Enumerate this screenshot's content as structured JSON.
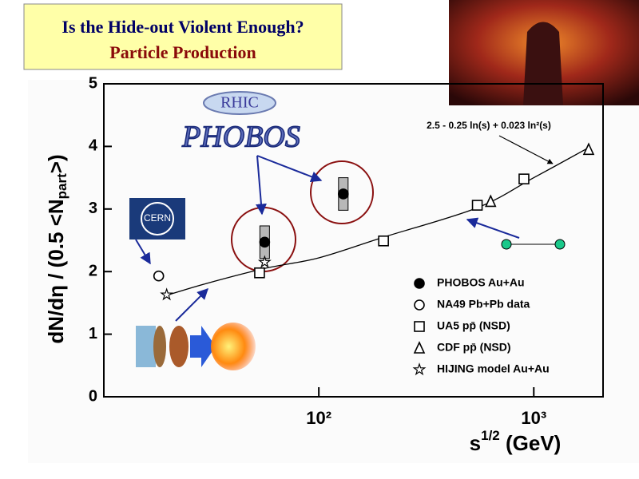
{
  "header": {
    "title": "Is the Hide-out Violent Enough?",
    "subtitle": "Particle Production"
  },
  "logos": {
    "rhic": "RHIC",
    "phobos": "PHOBOS",
    "cern": "CERN"
  },
  "chart_data": {
    "type": "scatter",
    "xlabel": [
      "s",
      "1/2",
      " (GeV)"
    ],
    "ylabel": [
      "dN/dη / (0.5 <N",
      "part",
      ">)"
    ],
    "xscale": "log",
    "xlim": [
      10,
      2100
    ],
    "ylim": [
      0,
      5
    ],
    "xticks": [
      {
        "value": 100,
        "label": "10²"
      },
      {
        "value": 1000,
        "label": "10³"
      }
    ],
    "yticks": [
      0,
      1,
      2,
      3,
      4,
      5
    ],
    "annotation": "2.5 - 0.25 ln(s) + 0.023 ln²(s)",
    "fit": {
      "x": [
        20,
        30,
        56,
        100,
        200,
        546,
        1000,
        1800
      ],
      "values": [
        1.63,
        1.81,
        2.05,
        2.22,
        2.55,
        3.02,
        3.5,
        3.98
      ],
      "color": "#000000"
    },
    "series": [
      {
        "name": "PHOBOS Au+Au",
        "marker": "filled-circle",
        "color": "#000000",
        "x": [
          56,
          130
        ],
        "values": [
          2.47,
          3.24
        ],
        "errors": [
          0.26,
          0.26
        ]
      },
      {
        "name": "NA49 Pb+Pb data",
        "marker": "circle",
        "color": "#000000",
        "x": [
          18
        ],
        "values": [
          1.93
        ]
      },
      {
        "name": "UA5 pp̄ (NSD)",
        "marker": "square",
        "color": "#000000",
        "x": [
          53,
          200,
          546,
          900
        ],
        "values": [
          1.98,
          2.49,
          3.06,
          3.48
        ]
      },
      {
        "name": "CDF pp̄ (NSD)",
        "marker": "triangle",
        "color": "#000000",
        "x": [
          630,
          1800
        ],
        "values": [
          3.12,
          3.95
        ]
      },
      {
        "name": "HIJING model Au+Au",
        "marker": "star",
        "color": "#000000",
        "x": [
          19.6,
          56
        ],
        "values": [
          1.63,
          2.15
        ]
      }
    ]
  }
}
